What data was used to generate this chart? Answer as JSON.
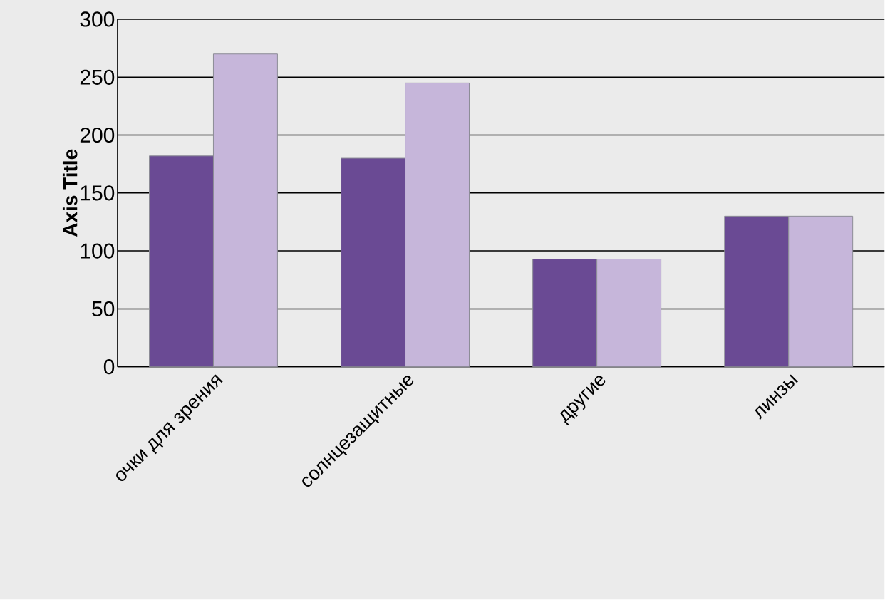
{
  "chart_data": {
    "type": "bar",
    "ylabel": "Axis Title",
    "categories": [
      "очки для зрения",
      "солнцезащитные",
      "другие",
      "линзы"
    ],
    "series": [
      {
        "color": "#6a4a94",
        "values": [
          182,
          180,
          93,
          130
        ]
      },
      {
        "color": "#c6b6da",
        "values": [
          270,
          245,
          93,
          130
        ]
      }
    ],
    "ylim": [
      0,
      300
    ],
    "yticks": [
      0,
      50,
      100,
      150,
      200,
      250,
      300
    ],
    "grid": "y"
  }
}
